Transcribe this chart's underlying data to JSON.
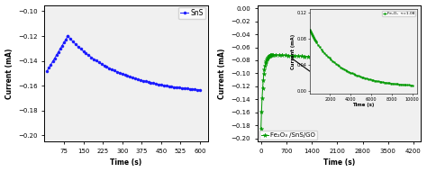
{
  "plot1": {
    "xlabel": "Time (s)",
    "ylabel": "Current (mA)",
    "xlim": [
      0,
      630
    ],
    "ylim": [
      -0.205,
      -0.095
    ],
    "xticks": [
      75,
      150,
      225,
      300,
      375,
      450,
      525,
      600
    ],
    "yticks": [
      -0.1,
      -0.12,
      -0.14,
      -0.16,
      -0.18,
      -0.2
    ],
    "legend": "SnS",
    "color": "#1a1aff",
    "marker": "o",
    "markersize": 2.2
  },
  "plot2": {
    "xlabel": "Time (s)",
    "ylabel": "Current (mA)",
    "xlim": [
      -100,
      4400
    ],
    "ylim": [
      -0.205,
      0.005
    ],
    "xticks": [
      0,
      700,
      1400,
      2100,
      2800,
      3500,
      4200
    ],
    "yticks": [
      0.0,
      -0.02,
      -0.04,
      -0.06,
      -0.08,
      -0.1,
      -0.12,
      -0.14,
      -0.16,
      -0.18,
      -0.2
    ],
    "legend": "Fe₂O₃ /SnS/GO",
    "color": "#009900",
    "marker": "*",
    "markersize": 3.5
  },
  "inset": {
    "xlim": [
      0,
      10500
    ],
    "ylim": [
      -0.005,
      0.125
    ],
    "xticks": [
      2000,
      4000,
      6000,
      8000,
      10000
    ],
    "yticks": [
      0.0,
      0.04,
      0.08,
      0.12
    ],
    "xlabel": "Time (s)",
    "ylabel": "Current (mA)",
    "legend": "Fe₂O₃  τ=1.08",
    "color": "#009900",
    "marker": "o",
    "markersize": 1.5
  },
  "bg_color": "#f0f0f0",
  "face_color": "#ffffff"
}
